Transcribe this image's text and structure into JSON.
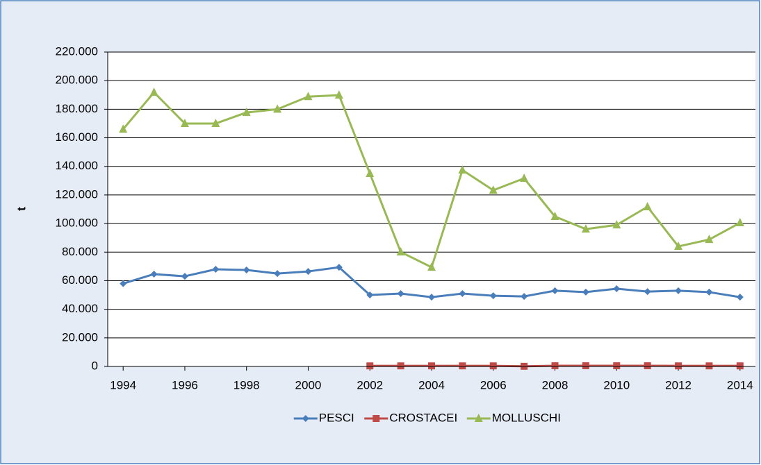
{
  "chart_data": {
    "type": "line",
    "y_label": "t",
    "x": [
      1994,
      1995,
      1996,
      1997,
      1998,
      1999,
      2000,
      2001,
      2002,
      2003,
      2004,
      2005,
      2006,
      2007,
      2008,
      2009,
      2010,
      2011,
      2012,
      2013,
      2014
    ],
    "xlim": [
      1993.5,
      2014.5
    ],
    "xticks": [
      1994,
      1996,
      1998,
      2000,
      2002,
      2004,
      2006,
      2008,
      2010,
      2012,
      2014
    ],
    "ylim": [
      0,
      220000
    ],
    "yticks": [
      0,
      {
        "value": 20000,
        "label": "20.000"
      },
      {
        "value": 40000,
        "label": "40.000"
      },
      {
        "value": 60000,
        "label": "60.000"
      },
      {
        "value": 80000,
        "label": "80.000"
      },
      {
        "value": 100000,
        "label": "100.000"
      },
      {
        "value": 120000,
        "label": "120.000"
      },
      {
        "value": 140000,
        "label": "140.000"
      },
      {
        "value": 160000,
        "label": "160.000"
      },
      {
        "value": 180000,
        "label": "180.000"
      },
      {
        "value": 200000,
        "label": "200.000"
      },
      {
        "value": 220000,
        "label": "220.000"
      }
    ],
    "grid": true,
    "legend": "bottom",
    "series": [
      {
        "name": "PESCI",
        "color": "#4a7ebb",
        "marker": "diamond",
        "values": [
          58000,
          64600,
          63100,
          68000,
          67500,
          65000,
          66500,
          69400,
          50000,
          51000,
          48500,
          51000,
          49500,
          49000,
          53000,
          52000,
          54400,
          52400,
          53000,
          52000,
          48500
        ]
      },
      {
        "name": "CROSTACEI",
        "color": "#be4b48",
        "marker": "square",
        "values": [
          null,
          null,
          null,
          null,
          null,
          null,
          null,
          null,
          400,
          400,
          400,
          400,
          400,
          100,
          500,
          500,
          500,
          500,
          400,
          400,
          400
        ]
      },
      {
        "name": "MOLLUSCHI",
        "color": "#98b954",
        "marker": "triangle",
        "values": [
          166000,
          191800,
          170000,
          170000,
          177700,
          180000,
          188800,
          189800,
          135000,
          80100,
          69400,
          137400,
          123300,
          131600,
          104900,
          96100,
          99000,
          111700,
          84000,
          88800,
          100500
        ]
      }
    ]
  }
}
